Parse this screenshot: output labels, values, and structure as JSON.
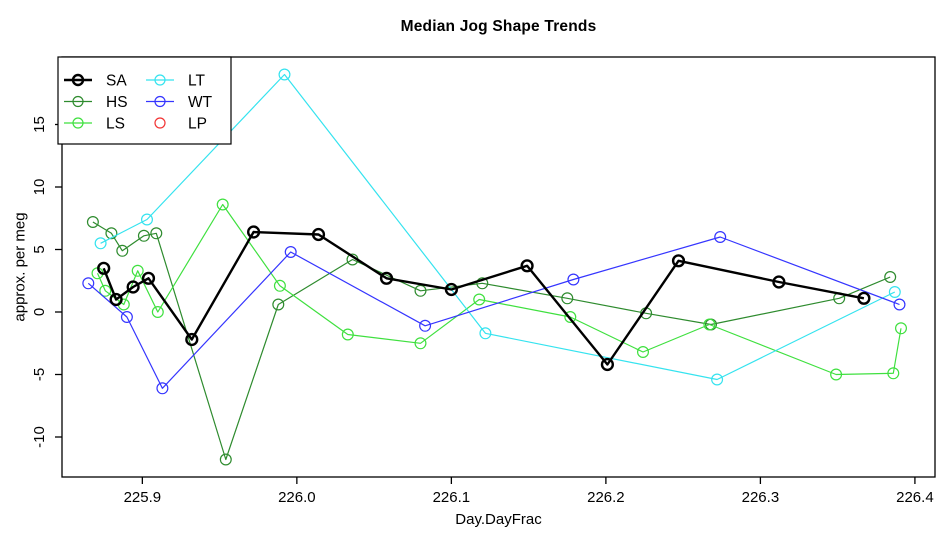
{
  "chart_data": {
    "type": "line",
    "title": "Median Jog Shape Trends",
    "xlabel": "Day.DayFrac",
    "ylabel": "approx. per meg",
    "xlim": [
      225.848,
      226.413
    ],
    "ylim": [
      -13.2,
      20.4
    ],
    "grid": false,
    "marker": "open-circle",
    "legend_position": "top-left",
    "x_ticks": [
      225.9,
      226.0,
      226.1,
      226.2,
      226.3,
      226.4
    ],
    "x_tick_labels": [
      "225.9",
      "226.0",
      "226.1",
      "226.2",
      "226.3",
      "226.4"
    ],
    "y_ticks": [
      -10,
      -5,
      0,
      5,
      10,
      15
    ],
    "y_tick_labels": [
      "-10",
      "-5",
      "0",
      "5",
      "10",
      "15"
    ],
    "axis_color": "#000000",
    "legend": {
      "columns": [
        [
          "SA",
          "HS",
          "LS"
        ],
        [
          "LT",
          "WT",
          "LP"
        ]
      ]
    },
    "series": [
      {
        "name": "SA",
        "color": "#000000",
        "line_width": 2.4,
        "legend_line": true,
        "points": [
          [
            225.875,
            3.5
          ],
          [
            225.883,
            1.0
          ],
          [
            225.894,
            2.0
          ],
          [
            225.904,
            2.7
          ],
          [
            225.932,
            -2.2
          ],
          [
            225.972,
            6.4
          ],
          [
            226.014,
            6.2
          ],
          [
            226.058,
            2.7
          ],
          [
            226.1,
            1.8
          ],
          [
            226.149,
            3.7
          ],
          [
            226.201,
            -4.2
          ],
          [
            226.247,
            4.1
          ],
          [
            226.312,
            2.4
          ],
          [
            226.367,
            1.1
          ]
        ]
      },
      {
        "name": "HS",
        "color": "#2e8b2e",
        "line_width": 1.2,
        "legend_line": true,
        "points": [
          [
            225.868,
            7.2
          ],
          [
            225.88,
            6.3
          ],
          [
            225.887,
            4.9
          ],
          [
            225.901,
            6.1
          ],
          [
            225.909,
            6.3
          ],
          [
            225.954,
            -11.8
          ],
          [
            225.988,
            0.6
          ],
          [
            226.036,
            4.2
          ],
          [
            226.08,
            1.7
          ],
          [
            226.12,
            2.3
          ],
          [
            226.175,
            1.1
          ],
          [
            226.226,
            -0.1
          ],
          [
            226.268,
            -1.0
          ],
          [
            226.351,
            1.1
          ],
          [
            226.384,
            2.8
          ]
        ]
      },
      {
        "name": "LS",
        "color": "#3fe03f",
        "line_width": 1.2,
        "legend_line": true,
        "points": [
          [
            225.871,
            3.1
          ],
          [
            225.876,
            1.7
          ],
          [
            225.888,
            0.6
          ],
          [
            225.897,
            3.3
          ],
          [
            225.91,
            0.0
          ],
          [
            225.952,
            8.6
          ],
          [
            225.989,
            2.1
          ],
          [
            226.033,
            -1.8
          ],
          [
            226.08,
            -2.5
          ],
          [
            226.118,
            1.0
          ],
          [
            226.177,
            -0.4
          ],
          [
            226.224,
            -3.2
          ],
          [
            226.267,
            -1.0
          ],
          [
            226.349,
            -5.0
          ],
          [
            226.386,
            -4.9
          ],
          [
            226.391,
            -1.3
          ]
        ]
      },
      {
        "name": "LT",
        "color": "#35e3ef",
        "line_width": 1.2,
        "legend_line": true,
        "points": [
          [
            225.873,
            5.5
          ],
          [
            225.903,
            7.4
          ],
          [
            225.992,
            19.0
          ],
          [
            226.122,
            -1.7
          ],
          [
            226.272,
            -5.4
          ],
          [
            226.387,
            1.6
          ]
        ]
      },
      {
        "name": "WT",
        "color": "#3535ff",
        "line_width": 1.2,
        "legend_line": true,
        "points": [
          [
            225.865,
            2.3
          ],
          [
            225.89,
            -0.4
          ],
          [
            225.913,
            -6.1
          ],
          [
            225.996,
            4.8
          ],
          [
            226.083,
            -1.1
          ],
          [
            226.179,
            2.6
          ],
          [
            226.274,
            6.0
          ],
          [
            226.39,
            0.6
          ]
        ]
      },
      {
        "name": "LP",
        "color": "#f23333",
        "line_width": 1.2,
        "legend_line": false,
        "points": []
      }
    ]
  }
}
